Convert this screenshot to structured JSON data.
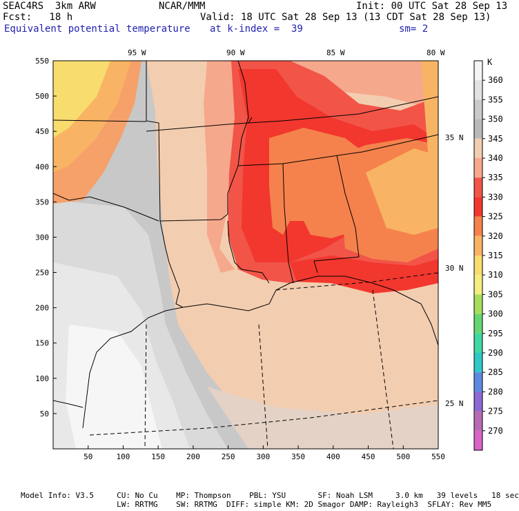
{
  "header": {
    "model": "SEAC4RS  3km ARW",
    "org": "NCAR/MMM",
    "init": "Init: 00 UTC Sat 28 Sep 13",
    "fcst": "Fcst:   18 h",
    "valid": "Valid: 18 UTC Sat 28 Sep 13 (13 CDT Sat 28 Sep 13)",
    "field": "Equivalent potential temperature",
    "level": "at k-index =  39",
    "smooth": "sm= 2"
  },
  "axes": {
    "x_ticks": [
      "50",
      "100",
      "150",
      "200",
      "250",
      "300",
      "350",
      "400",
      "450",
      "500",
      "550"
    ],
    "y_ticks": [
      "50",
      "100",
      "150",
      "200",
      "250",
      "300",
      "350",
      "400",
      "450",
      "500",
      "550"
    ],
    "lon_labels": [
      "95 W",
      "90 W",
      "85 W",
      "80 W"
    ],
    "lat_labels": [
      "35 N",
      "30 N",
      "25 N"
    ]
  },
  "colorbar": {
    "unit": "K",
    "levels": [
      "360",
      "355",
      "350",
      "345",
      "340",
      "335",
      "330",
      "325",
      "320",
      "315",
      "310",
      "305",
      "300",
      "295",
      "290",
      "285",
      "280",
      "275",
      "270"
    ],
    "colors": [
      "#f4f4f4",
      "#e2e2e2",
      "#cacaca",
      "#b9b9b9",
      "#f3cdb0",
      "#f6a88c",
      "#f25448",
      "#f2372e",
      "#f5824c",
      "#f8b464",
      "#f8dc6e",
      "#f4ee80",
      "#a6de5c",
      "#66d672",
      "#3ed8a2",
      "#2ec8c8",
      "#5c8ae0",
      "#8c6ad2",
      "#b86ab4",
      "#d864c8"
    ]
  },
  "footer": {
    "line1": "Model Info: V3.5     CU: No Cu    MP: Thompson    PBL: YSU       SF: Noah LSM     3.0 km   39 levels   18 sec",
    "line2": "                     LW: RRTMG    SW: RRTMG  DIFF: simple KM: 2D Smagor DAMP: Rayleigh3  SFLAY: Rev MM5"
  }
}
